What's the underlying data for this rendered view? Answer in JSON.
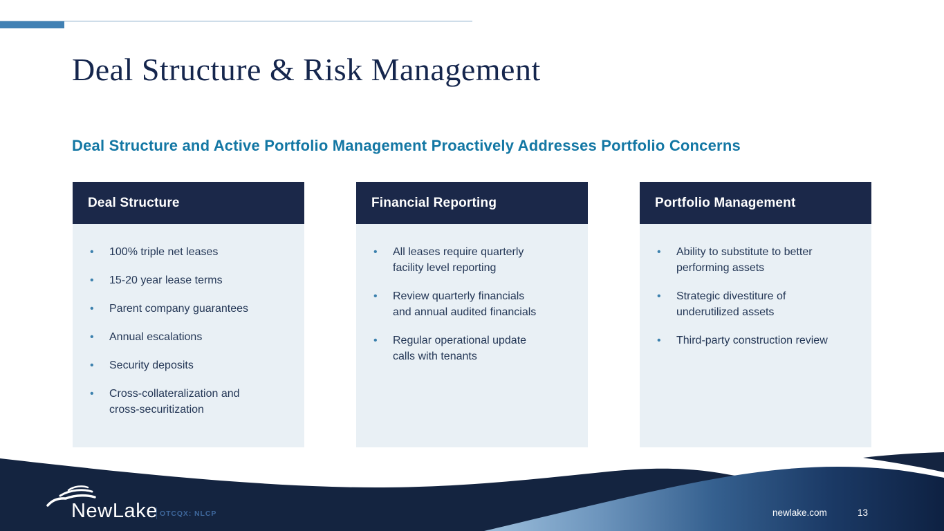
{
  "slide": {
    "title": "Deal Structure & Risk Management",
    "subtitle": "Deal Structure and Active Portfolio Management Proactively Addresses Portfolio Concerns"
  },
  "cards": [
    {
      "header": "Deal Structure",
      "bullets": [
        "100% triple net leases",
        "15-20 year lease terms",
        "Parent company guarantees",
        "Annual escalations",
        "Security deposits",
        "Cross-collateralization and\ncross-securitization"
      ]
    },
    {
      "header": "Financial Reporting",
      "bullets": [
        "All leases require quarterly\nfacility level reporting",
        "Review quarterly financials\nand annual audited financials",
        "Regular operational update\ncalls with tenants"
      ]
    },
    {
      "header": "Portfolio Management",
      "bullets": [
        "Ability to substitute to better\nperforming assets",
        "Strategic divestiture of\nunderutilized assets",
        "Third-party construction review"
      ]
    }
  ],
  "footer": {
    "logo_text": "NewLake",
    "ticker": "OTCQX: NLCP",
    "website": "newlake.com",
    "page_number": "13"
  },
  "colors": {
    "title_navy": "#15264d",
    "subtitle_blue": "#1377a4",
    "card_header_navy": "#1b2849",
    "card_body_light": "#e9f0f5",
    "bullet_dot_blue": "#3b80ad",
    "bullet_text": "#243756",
    "accent_bar_blue": "#4181b4",
    "footer_navy": "#142440",
    "ticker_blue": "#3e679c"
  }
}
